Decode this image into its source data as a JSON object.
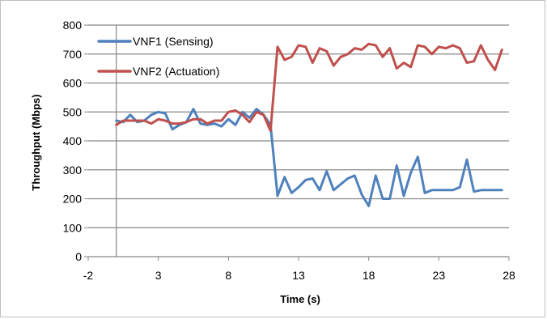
{
  "chart_data": {
    "type": "line",
    "title": "",
    "xlabel": "Time (s)",
    "ylabel": "Throughput (Mbps)",
    "xlim": [
      -2,
      28
    ],
    "ylim": [
      0,
      800
    ],
    "x_ticks": [
      "-2",
      "3",
      "8",
      "13",
      "18",
      "23",
      "28"
    ],
    "y_ticks": [
      "0",
      "100",
      "200",
      "300",
      "400",
      "500",
      "600",
      "700",
      "800"
    ],
    "grid": "horizontal",
    "legend_position": "top-left",
    "series": [
      {
        "name": "VNF1 (Sensing)",
        "color": "#4f81bd",
        "points": [
          [
            0,
            470
          ],
          [
            0.5,
            465
          ],
          [
            1,
            490
          ],
          [
            1.5,
            465
          ],
          [
            2,
            470
          ],
          [
            2.5,
            490
          ],
          [
            3,
            500
          ],
          [
            3.5,
            495
          ],
          [
            4,
            440
          ],
          [
            4.5,
            455
          ],
          [
            5,
            465
          ],
          [
            5.5,
            510
          ],
          [
            6,
            460
          ],
          [
            6.5,
            455
          ],
          [
            7,
            460
          ],
          [
            7.5,
            450
          ],
          [
            8,
            475
          ],
          [
            8.5,
            455
          ],
          [
            9,
            500
          ],
          [
            9.5,
            480
          ],
          [
            10,
            510
          ],
          [
            10.5,
            490
          ],
          [
            11,
            455
          ],
          [
            11.5,
            210
          ],
          [
            12,
            275
          ],
          [
            12.5,
            220
          ],
          [
            13,
            240
          ],
          [
            13.5,
            265
          ],
          [
            14,
            270
          ],
          [
            14.5,
            230
          ],
          [
            15,
            295
          ],
          [
            15.5,
            230
          ],
          [
            16,
            250
          ],
          [
            16.5,
            270
          ],
          [
            17,
            280
          ],
          [
            17.5,
            215
          ],
          [
            18,
            175
          ],
          [
            18.5,
            280
          ],
          [
            19,
            200
          ],
          [
            19.5,
            200
          ],
          [
            20,
            315
          ],
          [
            20.5,
            210
          ],
          [
            21,
            290
          ],
          [
            21.5,
            345
          ],
          [
            22,
            220
          ],
          [
            22.5,
            230
          ],
          [
            23,
            230
          ],
          [
            24,
            230
          ],
          [
            24.5,
            240
          ],
          [
            25,
            335
          ],
          [
            25.5,
            225
          ],
          [
            26,
            230
          ],
          [
            27.5,
            230
          ]
        ]
      },
      {
        "name": "VNF2 (Actuation)",
        "color": "#c0504d",
        "points": [
          [
            0,
            455
          ],
          [
            0.5,
            470
          ],
          [
            1,
            470
          ],
          [
            1.5,
            470
          ],
          [
            2,
            470
          ],
          [
            2.5,
            460
          ],
          [
            3,
            475
          ],
          [
            3.5,
            470
          ],
          [
            4,
            460
          ],
          [
            4.5,
            460
          ],
          [
            5,
            465
          ],
          [
            5.5,
            475
          ],
          [
            6,
            475
          ],
          [
            6.5,
            460
          ],
          [
            7,
            470
          ],
          [
            7.5,
            470
          ],
          [
            8,
            500
          ],
          [
            8.5,
            505
          ],
          [
            9,
            490
          ],
          [
            9.5,
            465
          ],
          [
            10,
            500
          ],
          [
            10.5,
            490
          ],
          [
            11,
            435
          ],
          [
            11.5,
            725
          ],
          [
            12,
            680
          ],
          [
            12.5,
            690
          ],
          [
            13,
            730
          ],
          [
            13.5,
            725
          ],
          [
            14,
            670
          ],
          [
            14.5,
            720
          ],
          [
            15,
            710
          ],
          [
            15.5,
            660
          ],
          [
            16,
            690
          ],
          [
            16.5,
            700
          ],
          [
            17,
            720
          ],
          [
            17.5,
            715
          ],
          [
            18,
            735
          ],
          [
            18.5,
            730
          ],
          [
            19,
            690
          ],
          [
            19.5,
            720
          ],
          [
            20,
            650
          ],
          [
            20.5,
            670
          ],
          [
            21,
            655
          ],
          [
            21.5,
            730
          ],
          [
            22,
            725
          ],
          [
            22.5,
            700
          ],
          [
            23,
            725
          ],
          [
            23.5,
            720
          ],
          [
            24,
            730
          ],
          [
            24.5,
            720
          ],
          [
            25,
            670
          ],
          [
            25.5,
            675
          ],
          [
            26,
            730
          ],
          [
            26.5,
            680
          ],
          [
            27,
            645
          ],
          [
            27.5,
            715
          ]
        ]
      }
    ]
  }
}
